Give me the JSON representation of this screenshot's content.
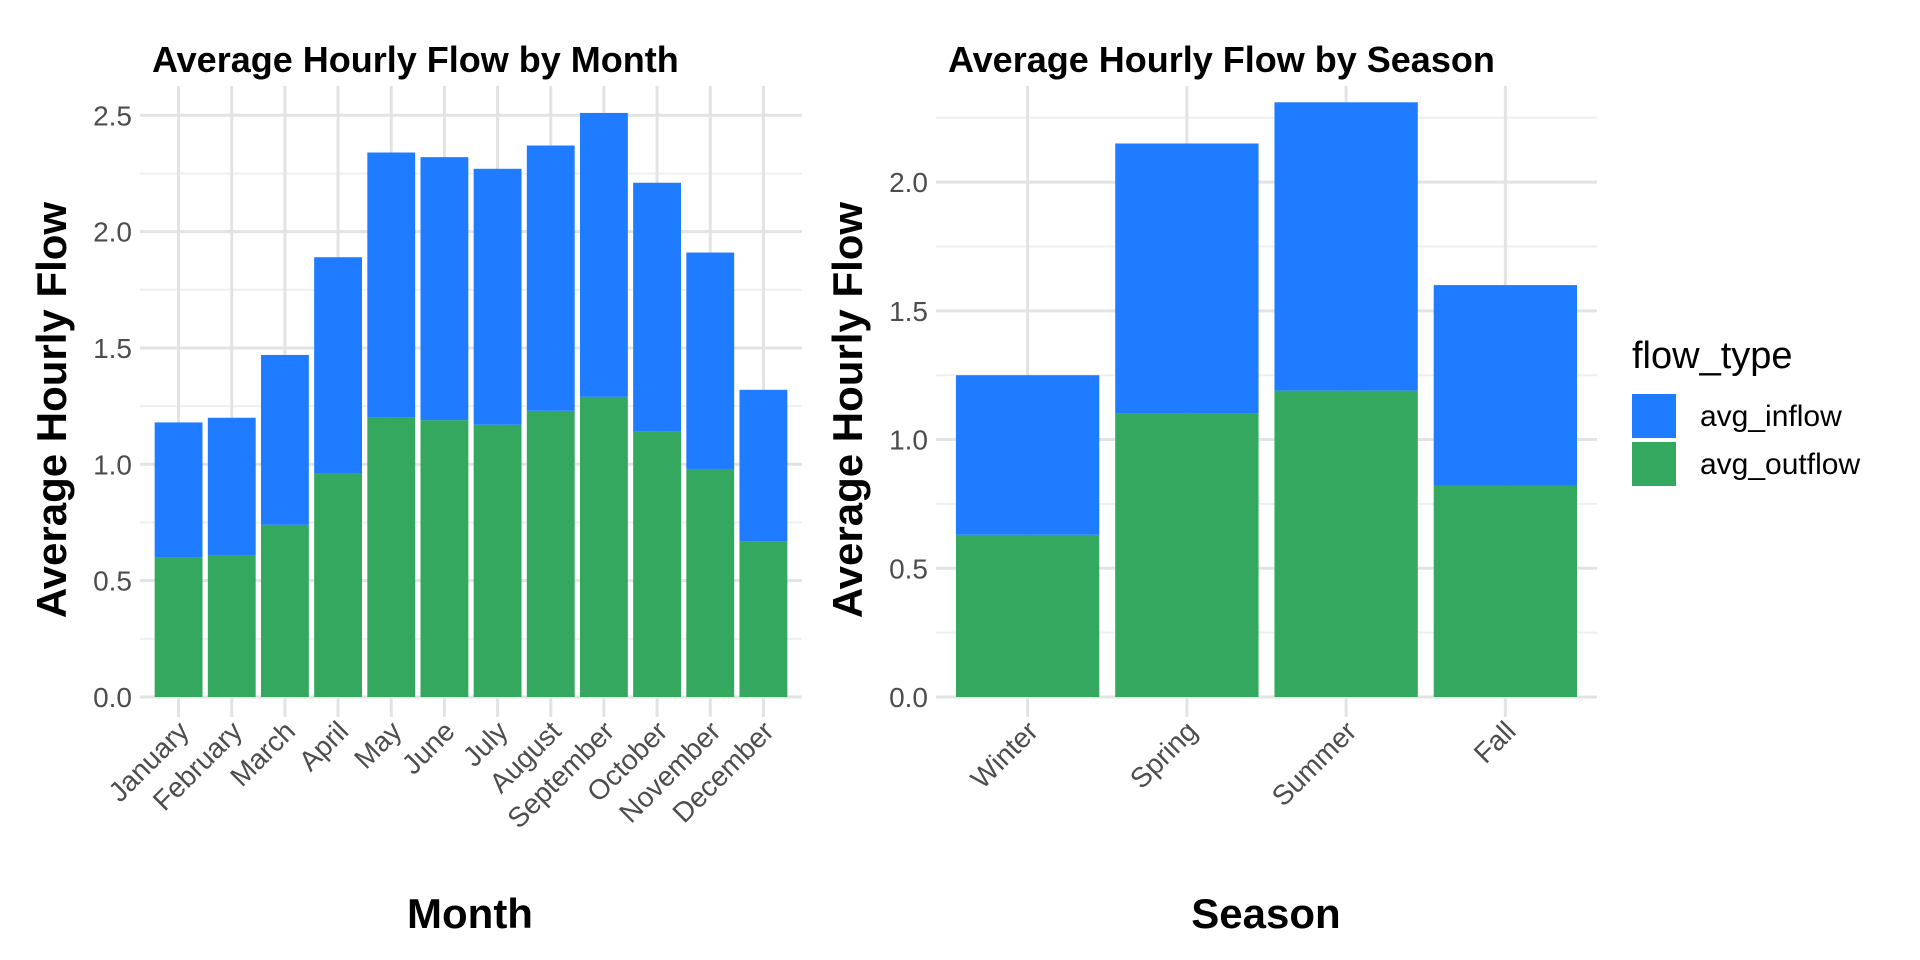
{
  "chart_data": [
    {
      "type": "bar",
      "stacked": true,
      "title": "Average Hourly Flow by Month",
      "xlabel": "Month",
      "ylabel": "Average Hourly Flow",
      "categories": [
        "January",
        "February",
        "March",
        "April",
        "May",
        "June",
        "July",
        "August",
        "September",
        "October",
        "November",
        "December"
      ],
      "series": [
        {
          "name": "avg_outflow",
          "color": "#34a85e",
          "values": [
            0.6,
            0.61,
            0.74,
            0.96,
            1.2,
            1.19,
            1.17,
            1.23,
            1.29,
            1.14,
            0.98,
            0.67
          ]
        },
        {
          "name": "avg_inflow",
          "color": "#1f7bff",
          "values": [
            0.58,
            0.59,
            0.73,
            0.93,
            1.14,
            1.13,
            1.1,
            1.14,
            1.22,
            1.07,
            0.93,
            0.65
          ]
        }
      ],
      "ylim": [
        0,
        2.6
      ],
      "yticks": [
        "0.0",
        "0.5",
        "1.0",
        "1.5",
        "2.0",
        "2.5"
      ],
      "grid": true
    },
    {
      "type": "bar",
      "stacked": true,
      "title": "Average Hourly Flow by Season",
      "xlabel": "Season",
      "ylabel": "Average Hourly Flow",
      "categories": [
        "Winter",
        "Spring",
        "Summer",
        "Fall"
      ],
      "series": [
        {
          "name": "avg_outflow",
          "color": "#34a85e",
          "values": [
            0.63,
            1.1,
            1.19,
            0.82
          ]
        },
        {
          "name": "avg_inflow",
          "color": "#1f7bff",
          "values": [
            0.62,
            1.05,
            1.12,
            0.78
          ]
        }
      ],
      "ylim": [
        0,
        2.35
      ],
      "yticks": [
        "0.0",
        "0.5",
        "1.0",
        "1.5",
        "2.0"
      ],
      "grid": true
    }
  ],
  "legend": {
    "title": "flow_type",
    "placement": "right",
    "items": [
      {
        "label": "avg_inflow",
        "color": "#1f7bff"
      },
      {
        "label": "avg_outflow",
        "color": "#34a85e"
      }
    ]
  }
}
